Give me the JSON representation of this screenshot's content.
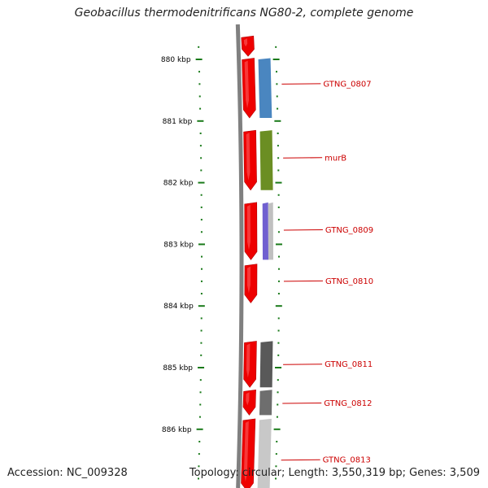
{
  "title": "Geobacillus thermodenitrificans NG80-2, complete genome",
  "footer": {
    "accession": "Accession: NC_009328",
    "summary": "Topology: circular; Length: 3,550,319 bp; Genes: 3,509"
  },
  "axis": {
    "unit": "kbp",
    "ticks": [
      "880 kbp",
      "881 kbp",
      "882 kbp",
      "883 kbp",
      "884 kbp",
      "885 kbp",
      "886 kbp"
    ],
    "tick_values": [
      880,
      881,
      882,
      883,
      884,
      885,
      886
    ],
    "range": [
      879.62,
      887.05
    ]
  },
  "colors": {
    "backbone": "#808080",
    "tick": "#1a7a1a",
    "cds": "#ee0000",
    "label": "#cc0000"
  },
  "cds": [
    {
      "start": 879.62,
      "end": 879.95
    },
    {
      "start": 879.98,
      "end": 880.95
    },
    {
      "start": 881.15,
      "end": 882.12
    },
    {
      "start": 882.32,
      "end": 883.25
    },
    {
      "start": 883.32,
      "end": 883.95
    },
    {
      "start": 884.57,
      "end": 885.32
    },
    {
      "start": 885.36,
      "end": 885.77
    },
    {
      "start": 885.83,
      "end": 887.05
    }
  ],
  "genes": [
    {
      "label": "GTNG_0807",
      "start": 879.98,
      "end": 880.95,
      "color": "#4a86c0",
      "label_value": 880.4
    },
    {
      "label": "murB",
      "start": 881.15,
      "end": 882.12,
      "color": "#6b8e23",
      "label_value": 881.6
    },
    {
      "label": "GTNG_0809",
      "start": 882.32,
      "end": 883.25,
      "color": "#7060d0",
      "second_color": "#c0c0c0",
      "label_value": 882.77
    },
    {
      "label": "GTNG_0810",
      "start": null,
      "end": null,
      "color": null,
      "label_value": 883.6
    },
    {
      "label": "GTNG_0811",
      "start": 884.57,
      "end": 885.32,
      "color": "#595959",
      "label_value": 884.95
    },
    {
      "label": "GTNG_0812",
      "start": 885.36,
      "end": 885.77,
      "color": "#6e6e6e",
      "label_value": 885.58
    },
    {
      "label": "GTNG_0813",
      "start": 885.83,
      "end": 887.05,
      "color": "#c8c8c8",
      "label_value": 886.5
    }
  ]
}
